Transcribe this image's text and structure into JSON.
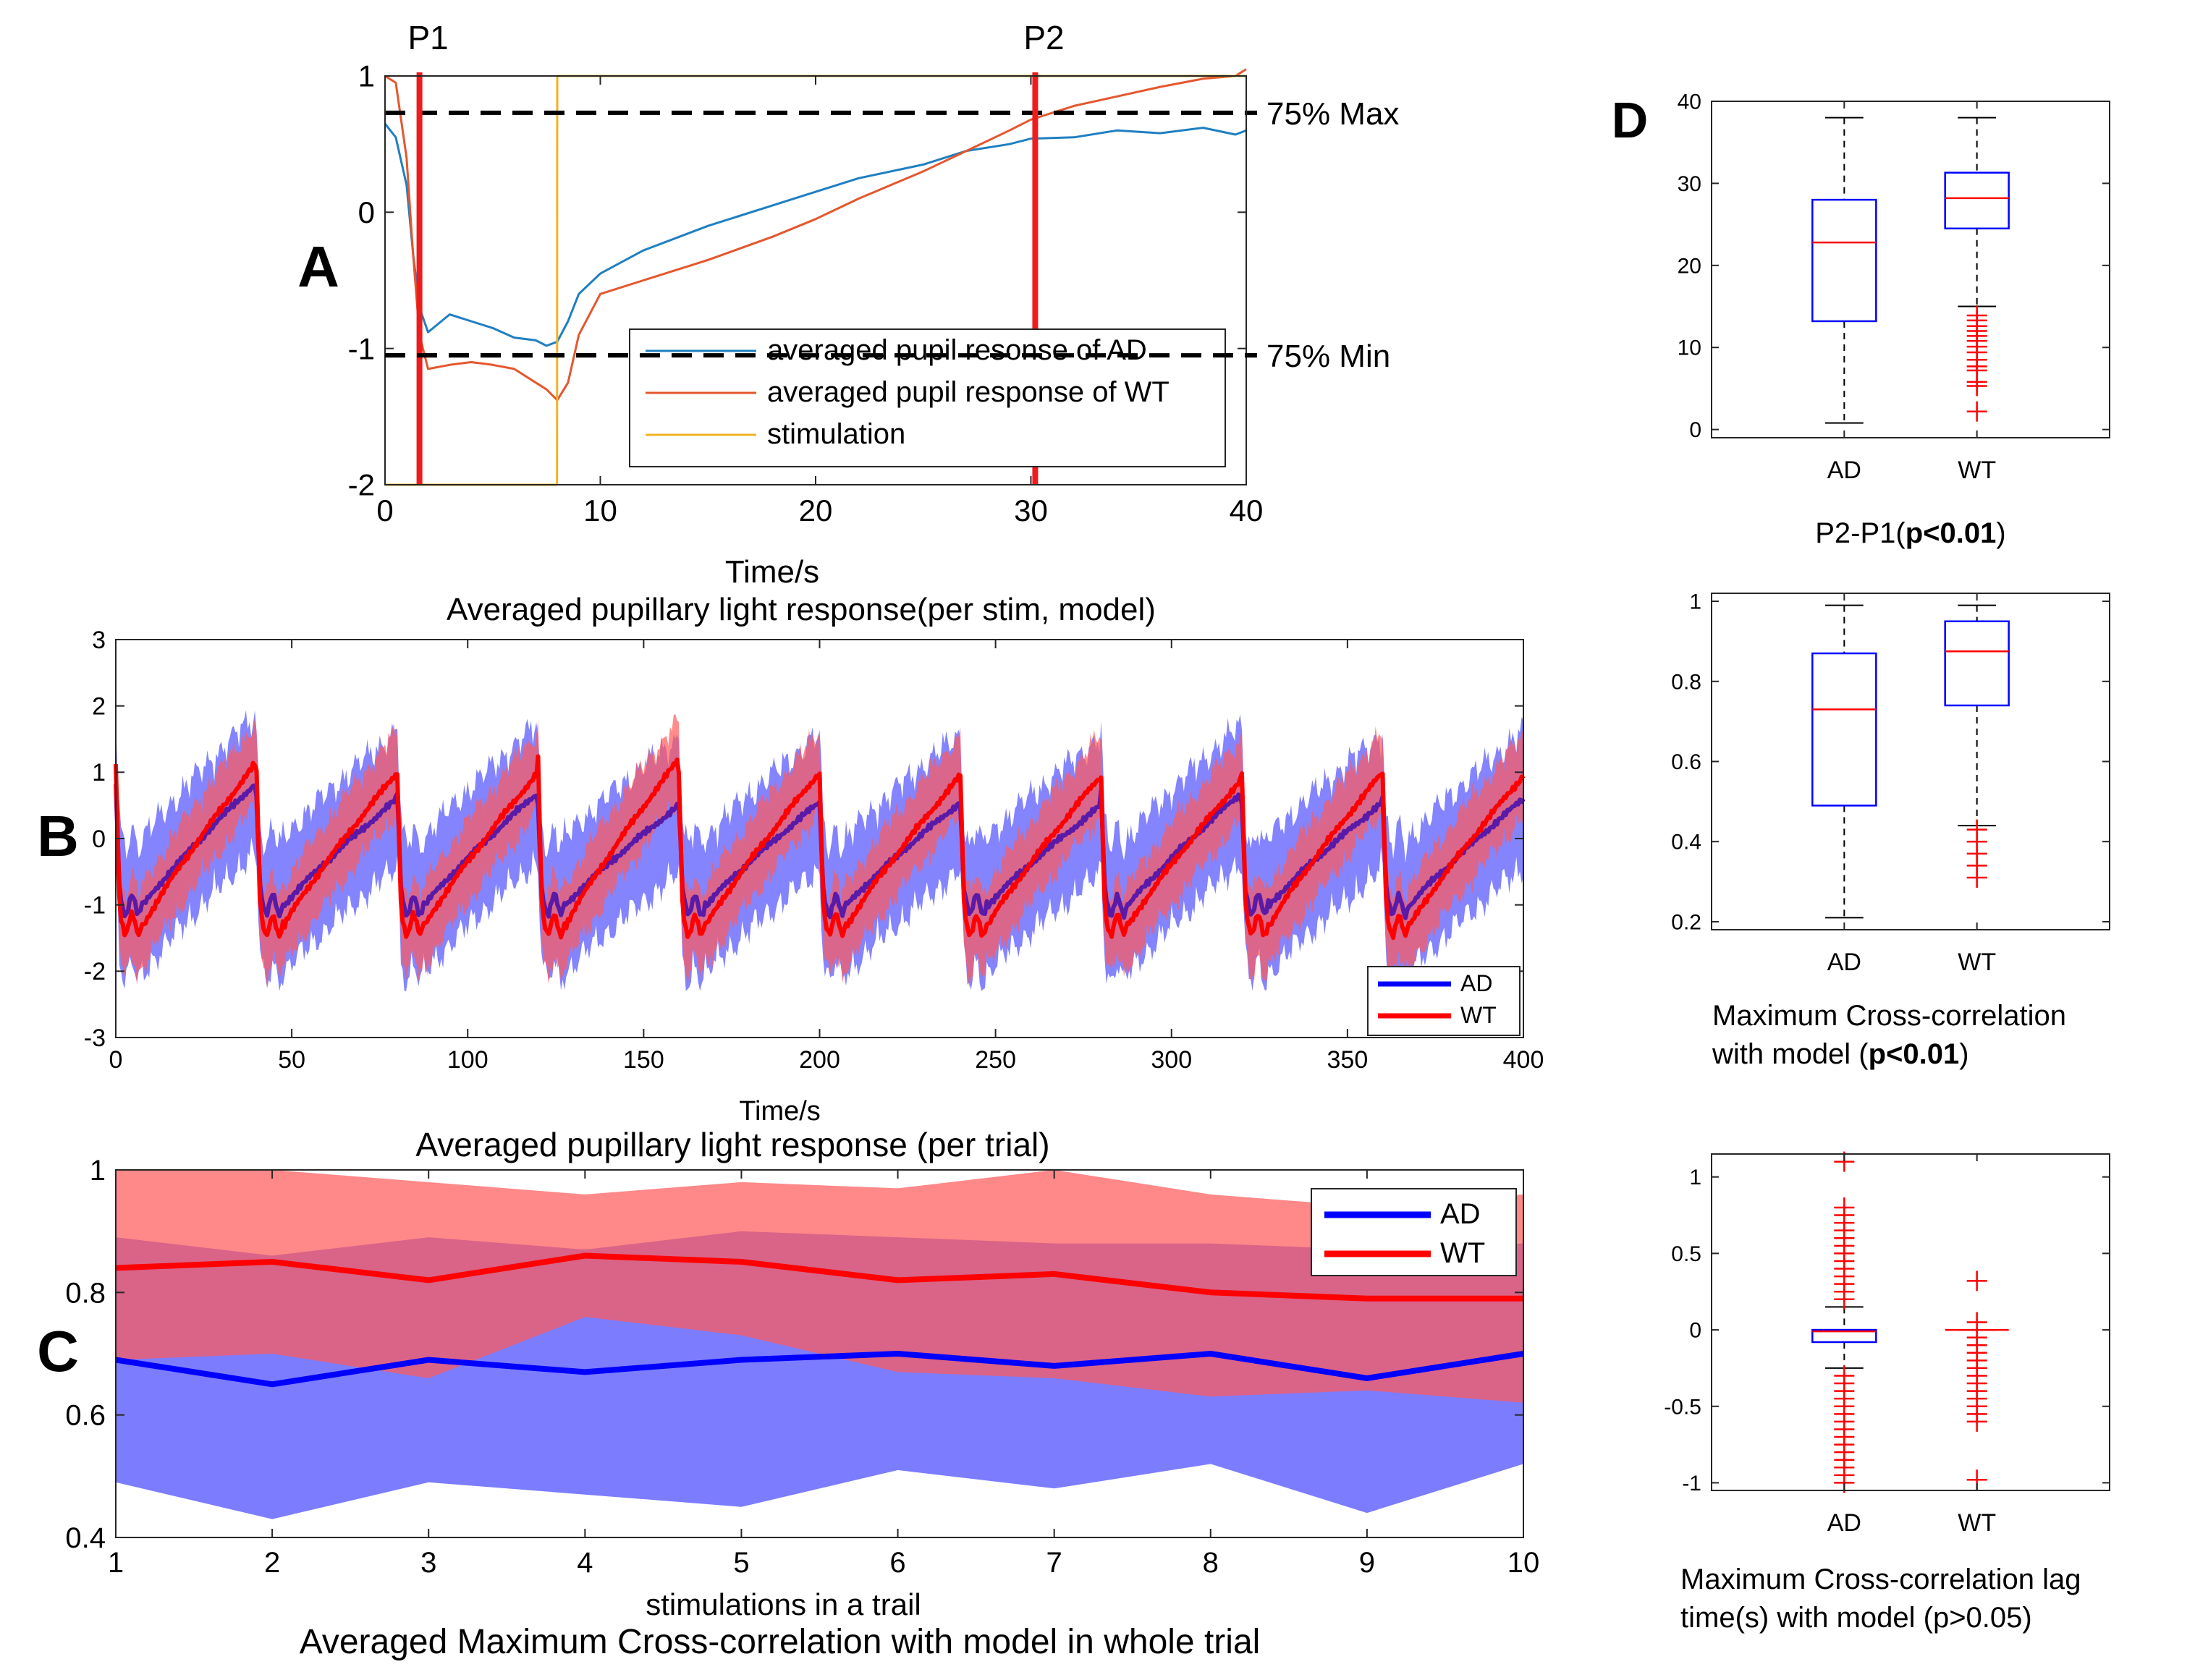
{
  "chart_data": [
    {
      "id": "A",
      "type": "line",
      "panel_letter": "A",
      "title": "Averaged pupillary light response(per stim, model)",
      "xlabel": "Time/s",
      "ylabel": "",
      "xlim": [
        0,
        40
      ],
      "ylim": [
        -2,
        1
      ],
      "xticks": [
        0,
        10,
        20,
        30,
        40
      ],
      "yticks": [
        -2,
        -1,
        0,
        1
      ],
      "markers": [
        {
          "label": "P1",
          "x": 1.6,
          "color": "#ee1c1c"
        },
        {
          "label": "P2",
          "x": 30.2,
          "color": "#ee1c1c"
        }
      ],
      "thresholds": [
        {
          "label": "75% Max",
          "y": 0.73
        },
        {
          "label": "75% Min",
          "y": -1.05
        }
      ],
      "legend_position": "bottom-right",
      "series": [
        {
          "name": "averaged pupil resonse of AD",
          "color": "#1f7fc1",
          "x": [
            0,
            0.5,
            1,
            1.3,
            1.6,
            2,
            3,
            4,
            5,
            6,
            7,
            7.5,
            8,
            8.5,
            9,
            10,
            12,
            15,
            18,
            20,
            22,
            25,
            27,
            29,
            30,
            32,
            34,
            36,
            38,
            39.5,
            40
          ],
          "y": [
            0.65,
            0.55,
            0.2,
            -0.3,
            -0.7,
            -0.88,
            -0.75,
            -0.8,
            -0.85,
            -0.92,
            -0.94,
            -0.98,
            -0.95,
            -0.8,
            -0.6,
            -0.45,
            -0.28,
            -0.1,
            0.05,
            0.15,
            0.25,
            0.35,
            0.45,
            0.5,
            0.54,
            0.55,
            0.6,
            0.58,
            0.62,
            0.57,
            0.6
          ]
        },
        {
          "name": "averaged pupil response of WT",
          "color": "#e4572e",
          "x": [
            0,
            0.5,
            1,
            1.3,
            1.6,
            2,
            3,
            4,
            5,
            6,
            7,
            7.5,
            8,
            8.5,
            9,
            10,
            12,
            15,
            18,
            20,
            22,
            25,
            27,
            29,
            30,
            32,
            34,
            36,
            38,
            39.5,
            40
          ],
          "y": [
            1.0,
            0.95,
            0.4,
            -0.3,
            -0.9,
            -1.15,
            -1.12,
            -1.1,
            -1.12,
            -1.15,
            -1.25,
            -1.3,
            -1.38,
            -1.25,
            -0.9,
            -0.6,
            -0.5,
            -0.35,
            -0.18,
            -0.05,
            0.1,
            0.3,
            0.45,
            0.6,
            0.68,
            0.78,
            0.85,
            0.92,
            0.98,
            1.0,
            1.05
          ]
        },
        {
          "name": "stimulation",
          "color": "#f0b323",
          "x": [
            0,
            7.99,
            8.0,
            40
          ],
          "y": [
            -2,
            -2,
            1,
            1
          ]
        }
      ]
    },
    {
      "id": "B",
      "type": "line",
      "panel_letter": "B",
      "title": "Averaged pupillary light response (per trial)",
      "xlabel": "Time/s",
      "ylabel": "",
      "xlim": [
        0,
        400
      ],
      "ylim": [
        -3,
        3
      ],
      "xticks": [
        0,
        50,
        100,
        150,
        200,
        250,
        300,
        350,
        400
      ],
      "yticks": [
        -3,
        -2,
        -1,
        0,
        1,
        2,
        3
      ],
      "period_s": 40,
      "legend_position": "bottom-right",
      "series": [
        {
          "name": "AD",
          "color": "#0000ff",
          "band_color": "#5b5bff",
          "cycle_peak": [
            0.85,
            0.6,
            0.7,
            0.5,
            0.55,
            0.55,
            0.5,
            0.7,
            0.55,
            0.6
          ],
          "cycle_min": -1.0,
          "band_halfwidth": 1.0
        },
        {
          "name": "WT",
          "color": "#ff0000",
          "band_color": "#ff5a5a",
          "cycle_peak": [
            1.15,
            1.0,
            1.0,
            1.2,
            1.0,
            0.95,
            0.95,
            0.9,
            1.0,
            0.95
          ],
          "cycle_min": -1.3,
          "band_halfwidth": 0.6
        }
      ]
    },
    {
      "id": "C",
      "type": "line",
      "panel_letter": "C",
      "title": "Averaged Maximum Cross-correlation with model in whole trial",
      "xlabel": "stimulations in a trail",
      "ylabel": "",
      "xlim": [
        1,
        10
      ],
      "ylim": [
        0.4,
        1.0
      ],
      "xticks": [
        1,
        2,
        3,
        4,
        5,
        6,
        7,
        8,
        9,
        10
      ],
      "yticks": [
        0.4,
        0.6,
        0.8,
        1
      ],
      "legend_position": "top-right",
      "x": [
        1,
        2,
        3,
        4,
        5,
        6,
        7,
        8,
        9,
        10
      ],
      "series": [
        {
          "name": "AD",
          "color": "#0000ff",
          "band_color": "#5b5bff",
          "mean": [
            0.69,
            0.65,
            0.69,
            0.67,
            0.69,
            0.7,
            0.68,
            0.7,
            0.66,
            0.7
          ],
          "upper": [
            0.89,
            0.86,
            0.89,
            0.87,
            0.9,
            0.89,
            0.88,
            0.88,
            0.87,
            0.88
          ],
          "lower": [
            0.49,
            0.43,
            0.49,
            0.47,
            0.45,
            0.51,
            0.48,
            0.52,
            0.44,
            0.52
          ]
        },
        {
          "name": "WT",
          "color": "#ff0000",
          "band_color": "#ff5a5a",
          "mean": [
            0.84,
            0.85,
            0.82,
            0.86,
            0.85,
            0.82,
            0.83,
            0.8,
            0.79,
            0.79
          ],
          "upper": [
            1.0,
            1.0,
            0.98,
            0.96,
            0.98,
            0.97,
            1.0,
            0.96,
            0.94,
            0.96
          ],
          "lower": [
            0.69,
            0.7,
            0.66,
            0.76,
            0.73,
            0.67,
            0.66,
            0.63,
            0.64,
            0.62
          ]
        }
      ]
    },
    {
      "id": "D1",
      "type": "box",
      "panel_letter": "D",
      "caption_plain": "P2-P1(",
      "caption_bold": "p<0.01",
      "caption_end": ")",
      "ylim": [
        -1,
        40
      ],
      "yticks": [
        0,
        10,
        20,
        30,
        40
      ],
      "categories": [
        "AD",
        "WT"
      ],
      "boxes": [
        {
          "name": "AD",
          "whisker_low": 0.8,
          "q1": 13.2,
          "median": 22.8,
          "q3": 28.0,
          "whisker_high": 38.0,
          "outliers": []
        },
        {
          "name": "WT",
          "whisker_low": 15.0,
          "q1": 24.5,
          "median": 28.2,
          "q3": 31.3,
          "whisker_high": 38.0,
          "outliers": [
            2.2,
            5.3,
            5.8,
            7.2,
            7.7,
            8.5,
            9.4,
            10.1,
            10.8,
            11.4,
            12.0,
            12.6,
            13.3,
            13.9
          ]
        }
      ]
    },
    {
      "id": "D2",
      "type": "box",
      "caption_line1": "Maximum Cross-correlation",
      "caption_plain": "with model (",
      "caption_bold": "p<0.01",
      "caption_end": ")",
      "ylim": [
        0.18,
        1.02
      ],
      "yticks": [
        0.2,
        0.4,
        0.6,
        0.8,
        1
      ],
      "ytick_labels": [
        "0.2",
        "0.4",
        "0.6",
        "0.8",
        "1"
      ],
      "categories": [
        "AD",
        "WT"
      ],
      "boxes": [
        {
          "name": "AD",
          "whisker_low": 0.21,
          "q1": 0.49,
          "median": 0.73,
          "q3": 0.87,
          "whisker_high": 0.99,
          "outliers": []
        },
        {
          "name": "WT",
          "whisker_low": 0.44,
          "q1": 0.74,
          "median": 0.875,
          "q3": 0.95,
          "whisker_high": 0.99,
          "outliers": [
            0.31,
            0.34,
            0.37,
            0.4,
            0.43
          ]
        }
      ]
    },
    {
      "id": "D3",
      "type": "box",
      "caption_line1": "Maximum Cross-correlation lag",
      "caption_line2": "time(s) with model (p>0.05)",
      "ylim": [
        -1.05,
        1.15
      ],
      "yticks": [
        -1,
        -0.5,
        0,
        0.5,
        1
      ],
      "ytick_labels": [
        "-1",
        "-0.5",
        "0",
        "0.5",
        "1"
      ],
      "categories": [
        "AD",
        "WT"
      ],
      "boxes": [
        {
          "name": "AD",
          "whisker_low": -0.25,
          "q1": -0.08,
          "median": -0.01,
          "q3": 0.0,
          "whisker_high": 0.15,
          "outliers": [
            -1.0,
            -0.95,
            -0.9,
            -0.85,
            -0.8,
            -0.75,
            -0.7,
            -0.65,
            -0.6,
            -0.55,
            -0.5,
            -0.45,
            -0.4,
            -0.35,
            -0.3,
            0.2,
            0.25,
            0.3,
            0.35,
            0.4,
            0.45,
            0.5,
            0.55,
            0.6,
            0.65,
            0.7,
            0.75,
            0.8,
            1.1
          ]
        },
        {
          "name": "WT",
          "whisker_low": 0.0,
          "q1": 0.0,
          "median": 0.0,
          "q3": 0.0,
          "whisker_high": 0.0,
          "outliers": [
            -0.98,
            -0.6,
            -0.55,
            -0.5,
            -0.45,
            -0.4,
            -0.35,
            -0.3,
            -0.25,
            -0.2,
            -0.15,
            -0.1,
            -0.05,
            0.05,
            0.32
          ]
        }
      ]
    }
  ]
}
